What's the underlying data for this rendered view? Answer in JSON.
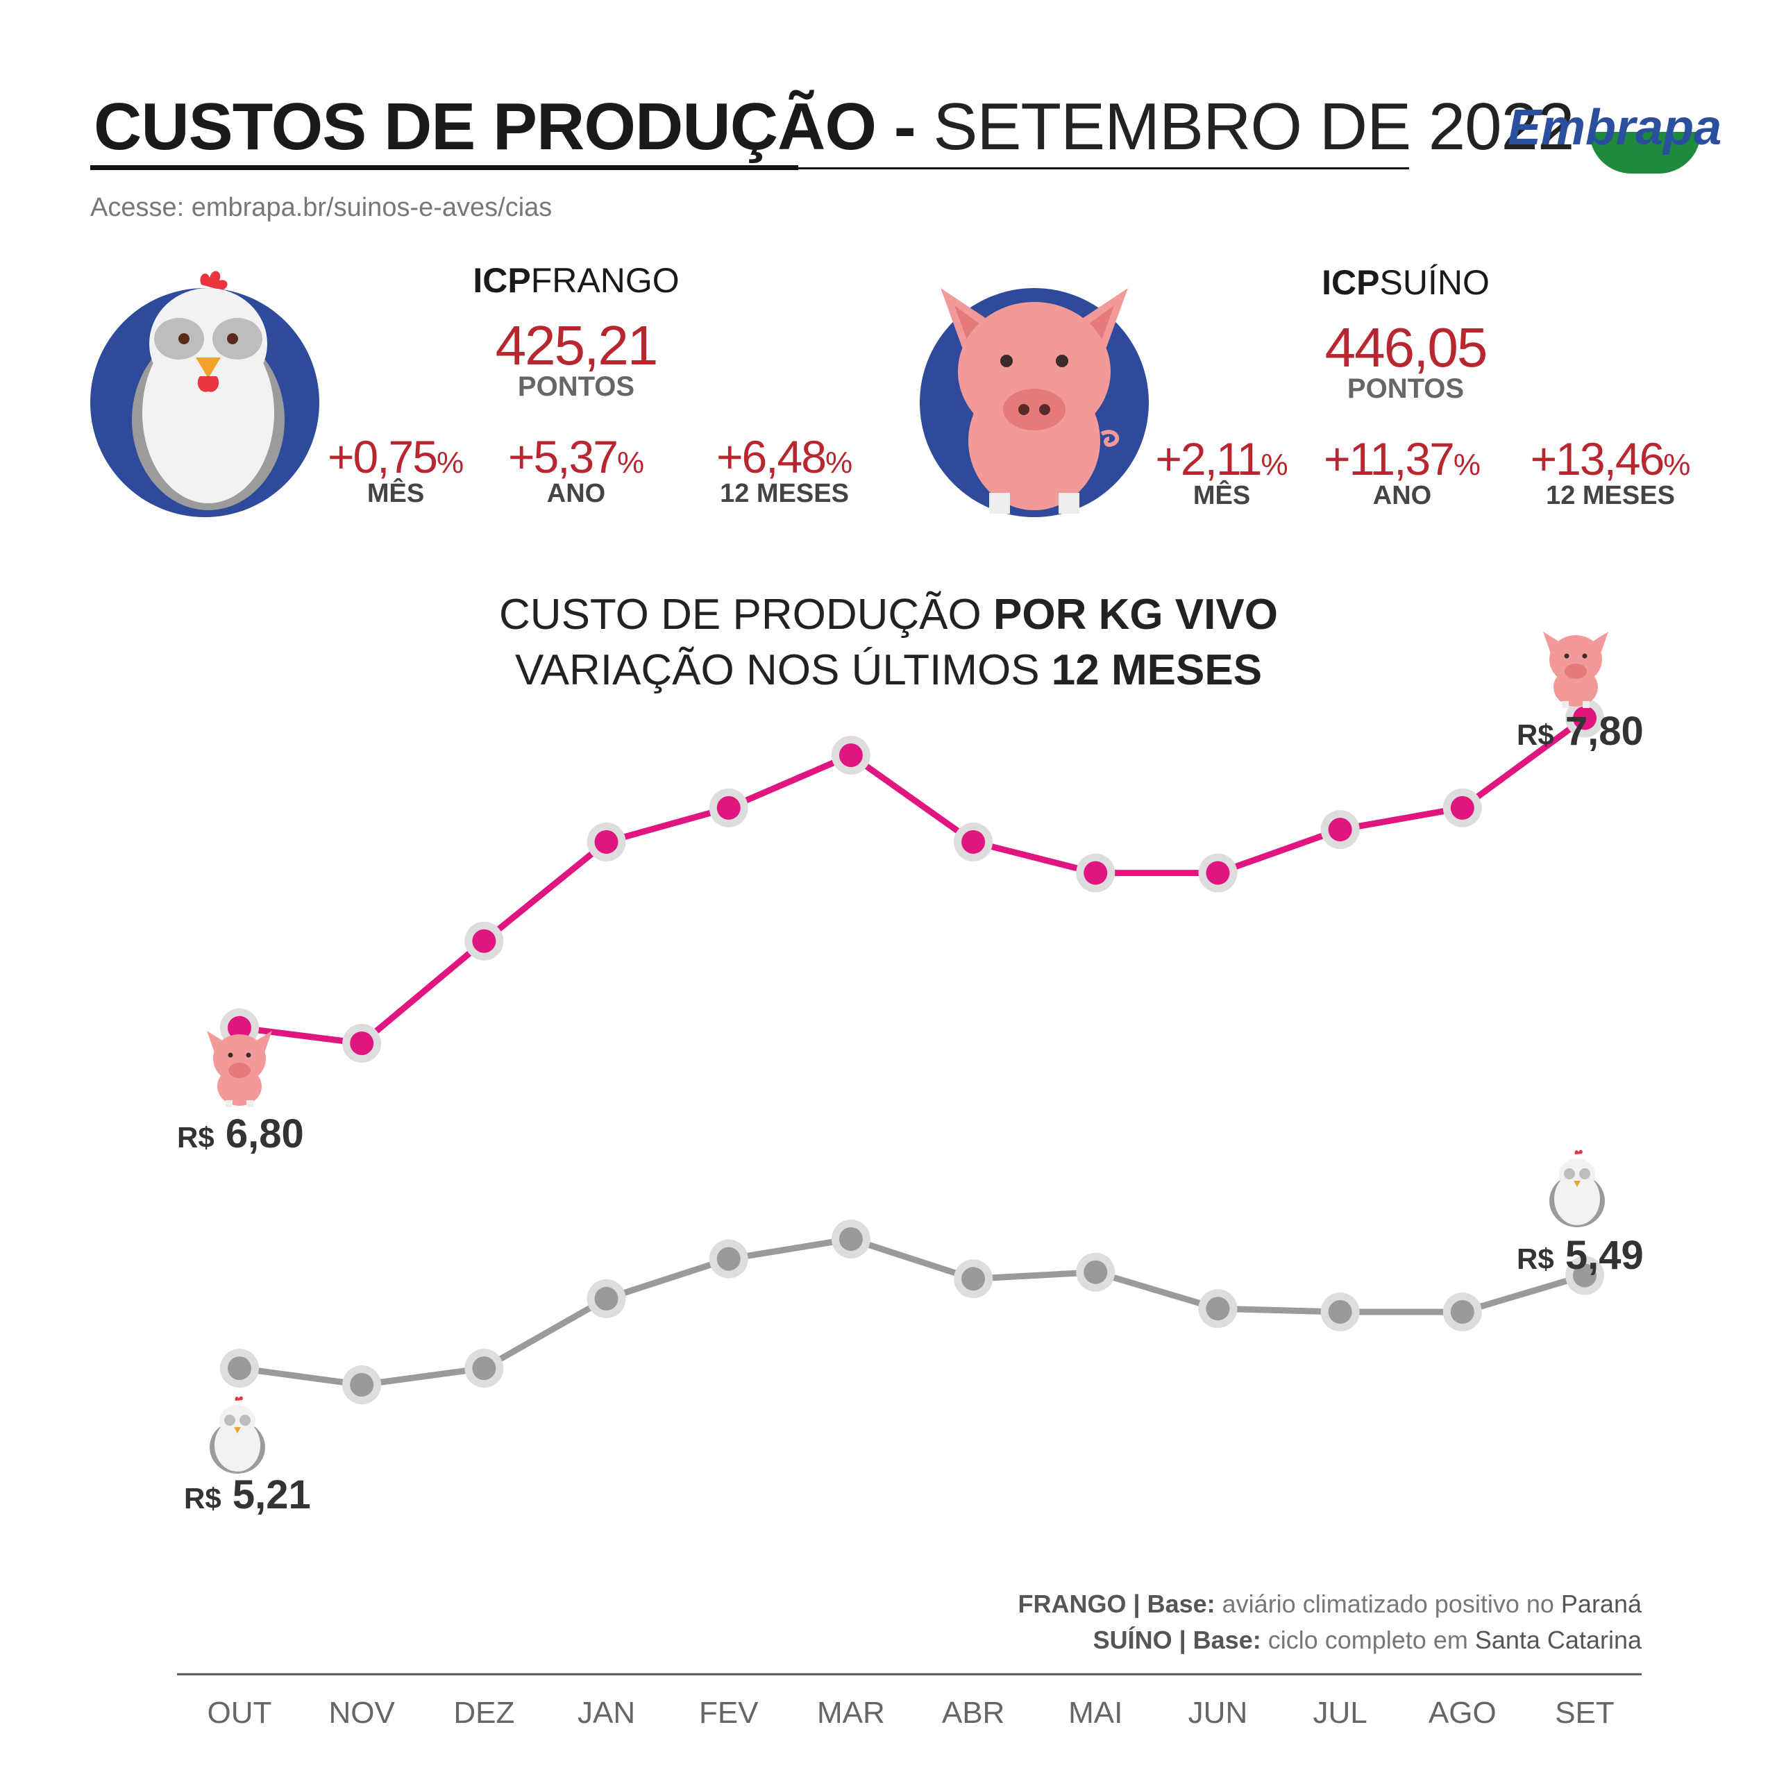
{
  "header": {
    "title_bold": "CUSTOS DE PRODUÇÃO -",
    "title_light": "SETEMBRO DE 2022",
    "access": "Acesse: embrapa.br/suinos-e-aves/cias",
    "logo": "Embrapa"
  },
  "frango": {
    "label_bold": "ICP",
    "label_light": "FRANGO",
    "value": "425,21",
    "unit": "PONTOS",
    "stats": [
      {
        "value": "+0,75",
        "pct": "%",
        "label": "MÊS"
      },
      {
        "value": "+5,37",
        "pct": "%",
        "label": "ANO"
      },
      {
        "value": "+6,48",
        "pct": "%",
        "label": "12 MESES"
      }
    ]
  },
  "suino": {
    "label_bold": "ICP",
    "label_light": "SUÍNO",
    "value": "446,05",
    "unit": "PONTOS",
    "stats": [
      {
        "value": "+2,11",
        "pct": "%",
        "label": "MÊS"
      },
      {
        "value": "+11,37",
        "pct": "%",
        "label": "ANO"
      },
      {
        "value": "+13,46",
        "pct": "%",
        "label": "12 MESES"
      }
    ]
  },
  "chart_title": {
    "line1_light": "CUSTO DE PRODUÇÃO",
    "line1_bold": "POR KG VIVO",
    "line2_light": "VARIAÇÃO NOS ÚLTIMOS",
    "line2_bold": "12 MESES"
  },
  "labels": {
    "suino_start_currency": "R$",
    "suino_start_value": "6,80",
    "suino_end_currency": "R$",
    "suino_end_value": "7,80",
    "frango_start_currency": "R$",
    "frango_start_value": "5,21",
    "frango_end_currency": "R$",
    "frango_end_value": "5,49"
  },
  "footnotes": {
    "frango_name": "FRANGO | Base:",
    "frango_desc": "aviário climatizado positivo no",
    "frango_place": "Paraná",
    "suino_name": "SUÍNO | Base:",
    "suino_desc": "ciclo completo em",
    "suino_place": "Santa Catarina"
  },
  "colors": {
    "suino_line": "#e0157f",
    "frango_line": "#9a9a9a",
    "marker_halo": "#dddddd",
    "accent_red": "#b8262f",
    "circle_bg": "#2e4a9a"
  },
  "chart_data": {
    "type": "line",
    "categories": [
      "OUT",
      "NOV",
      "DEZ",
      "JAN",
      "FEV",
      "MAR",
      "ABR",
      "MAI",
      "JUN",
      "JUL",
      "AGO",
      "SET"
    ],
    "series": [
      {
        "name": "SUÍNO",
        "values": [
          6.8,
          6.75,
          7.08,
          7.4,
          7.51,
          7.68,
          7.4,
          7.3,
          7.3,
          7.44,
          7.51,
          7.8
        ]
      },
      {
        "name": "FRANGO",
        "values": [
          5.21,
          5.16,
          5.21,
          5.42,
          5.54,
          5.6,
          5.48,
          5.5,
          5.39,
          5.38,
          5.38,
          5.49
        ]
      }
    ]
  }
}
